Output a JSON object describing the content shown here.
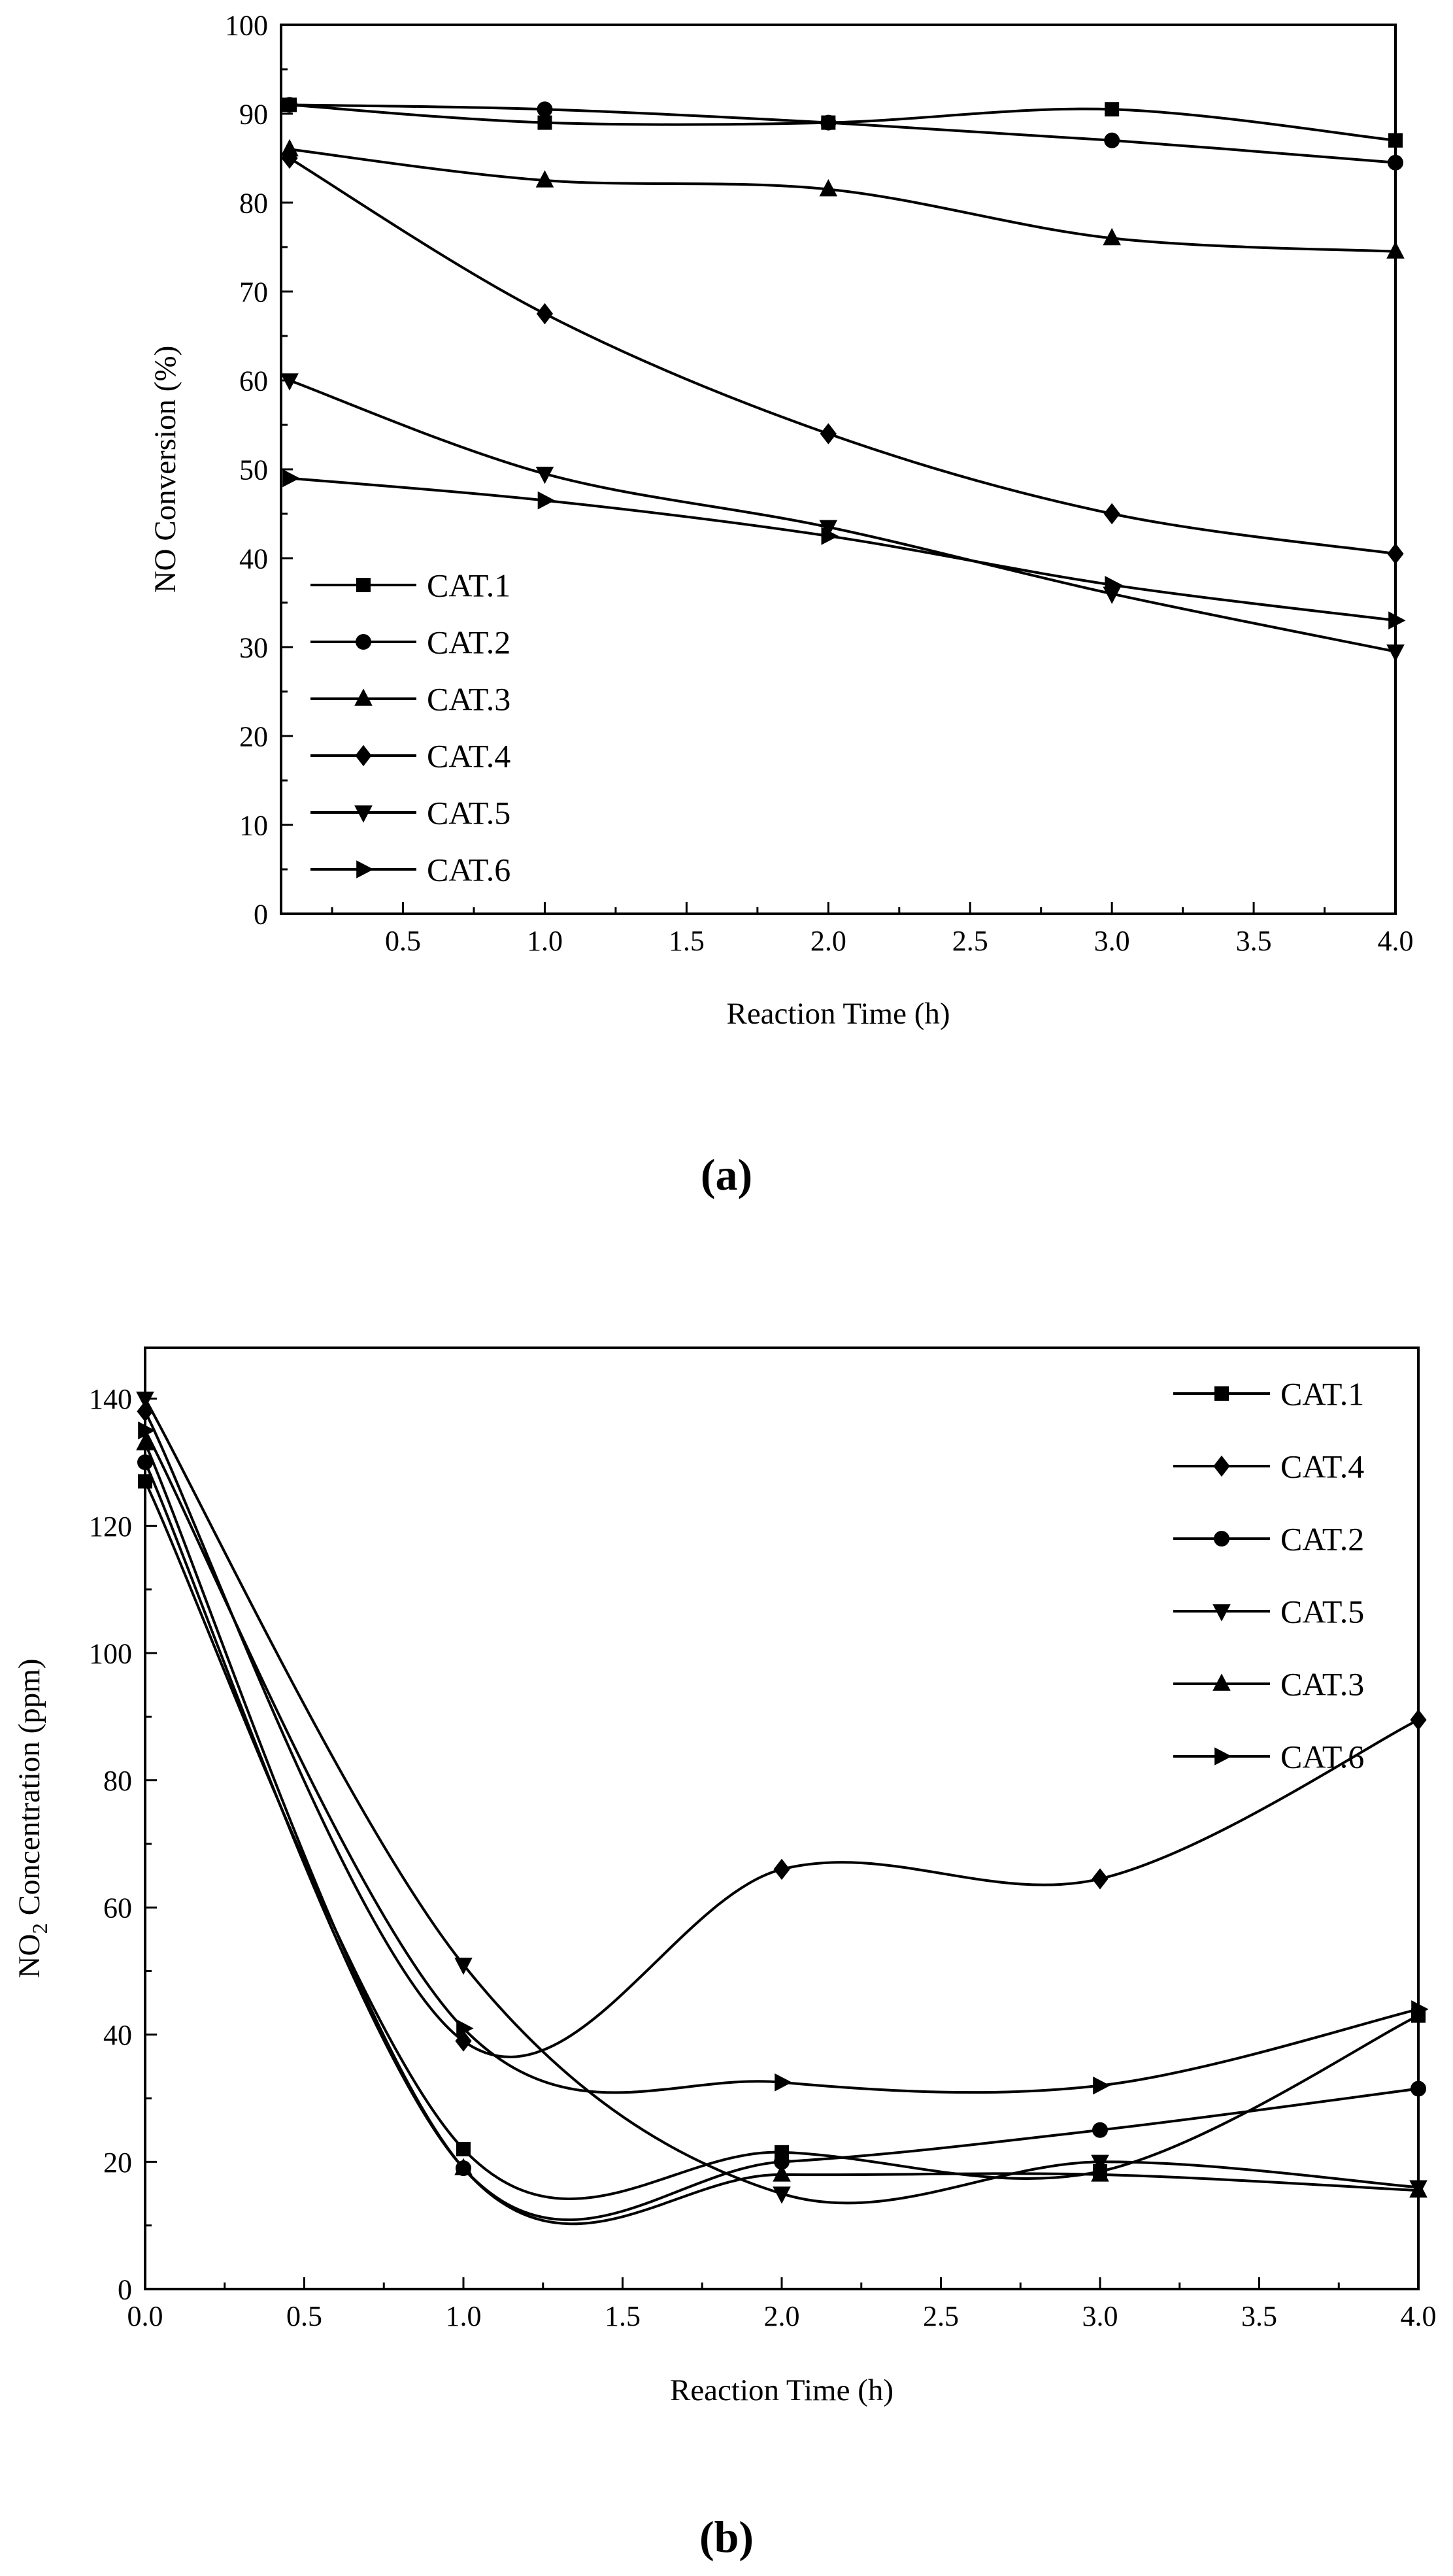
{
  "page": {
    "background": "#ffffff",
    "ink": "#000000"
  },
  "captions": {
    "a": "(a)",
    "b": "(b)"
  },
  "chart_data": [
    {
      "panel": "a",
      "type": "line",
      "title": "",
      "xlabel": "Reaction Time (h)",
      "ylabel": "NO Conversion (%)",
      "ylabel_segments": [
        {
          "t": "NO Conversion (%)",
          "sub": false
        }
      ],
      "xlim": [
        0.07,
        4.0
      ],
      "ylim": [
        0,
        100
      ],
      "x_minor_step": 0.25,
      "y_minor_step": 5,
      "xticks": [
        {
          "v": 0.5,
          "label": "0.5"
        },
        {
          "v": 1.0,
          "label": "1.0"
        },
        {
          "v": 1.5,
          "label": "1.5"
        },
        {
          "v": 2.0,
          "label": "2.0"
        },
        {
          "v": 2.5,
          "label": "2.5"
        },
        {
          "v": 3.0,
          "label": "3.0"
        },
        {
          "v": 3.5,
          "label": "3.5"
        },
        {
          "v": 4.0,
          "label": "4.0"
        }
      ],
      "yticks": [
        {
          "v": 0,
          "label": "0"
        },
        {
          "v": 10,
          "label": "10"
        },
        {
          "v": 20,
          "label": "20"
        },
        {
          "v": 30,
          "label": "30"
        },
        {
          "v": 40,
          "label": "40"
        },
        {
          "v": 50,
          "label": "50"
        },
        {
          "v": 60,
          "label": "60"
        },
        {
          "v": 70,
          "label": "70"
        },
        {
          "v": 80,
          "label": "80"
        },
        {
          "v": 90,
          "label": "90"
        },
        {
          "v": 100,
          "label": "100"
        }
      ],
      "x": [
        0.1,
        1.0,
        2.0,
        3.0,
        4.0
      ],
      "series": [
        {
          "name": "CAT.1",
          "marker": "square",
          "values": [
            91,
            89,
            89,
            90.5,
            87
          ]
        },
        {
          "name": "CAT.2",
          "marker": "circle",
          "values": [
            91,
            90.5,
            89,
            87,
            84.5
          ]
        },
        {
          "name": "CAT.3",
          "marker": "triangle-up",
          "values": [
            86,
            82.5,
            81.5,
            76,
            74.5
          ]
        },
        {
          "name": "CAT.4",
          "marker": "diamond",
          "values": [
            85,
            67.5,
            54,
            45,
            40.5
          ]
        },
        {
          "name": "CAT.5",
          "marker": "triangle-down",
          "values": [
            60,
            49.5,
            43.5,
            36,
            29.5
          ]
        },
        {
          "name": "CAT.6",
          "marker": "triangle-right",
          "values": [
            49,
            46.5,
            42.5,
            37,
            33
          ]
        }
      ],
      "legend": {
        "position": "left-middle",
        "order": [
          "CAT.1",
          "CAT.2",
          "CAT.3",
          "CAT.4",
          "CAT.5",
          "CAT.6"
        ]
      }
    },
    {
      "panel": "b",
      "type": "line",
      "title": "",
      "xlabel": "Reaction Time (h)",
      "ylabel": "NO2 Concentration (ppm)",
      "ylabel_segments": [
        {
          "t": "NO",
          "sub": false
        },
        {
          "t": "2",
          "sub": true
        },
        {
          "t": " Concentration (ppm)",
          "sub": false
        }
      ],
      "xlim": [
        0.0,
        4.0
      ],
      "ylim": [
        0,
        148
      ],
      "x_minor_step": 0.25,
      "y_minor_step": 10,
      "xticks": [
        {
          "v": 0.0,
          "label": "0.0"
        },
        {
          "v": 0.5,
          "label": "0.5"
        },
        {
          "v": 1.0,
          "label": "1.0"
        },
        {
          "v": 1.5,
          "label": "1.5"
        },
        {
          "v": 2.0,
          "label": "2.0"
        },
        {
          "v": 2.5,
          "label": "2.5"
        },
        {
          "v": 3.0,
          "label": "3.0"
        },
        {
          "v": 3.5,
          "label": "3.5"
        },
        {
          "v": 4.0,
          "label": "4.0"
        }
      ],
      "yticks": [
        {
          "v": 0,
          "label": "0"
        },
        {
          "v": 20,
          "label": "20"
        },
        {
          "v": 40,
          "label": "40"
        },
        {
          "v": 60,
          "label": "60"
        },
        {
          "v": 80,
          "label": "80"
        },
        {
          "v": 100,
          "label": "100"
        },
        {
          "v": 120,
          "label": "120"
        },
        {
          "v": 140,
          "label": "140"
        }
      ],
      "x": [
        0.0,
        1.0,
        2.0,
        3.0,
        4.0
      ],
      "series": [
        {
          "name": "CAT.1",
          "marker": "square",
          "values": [
            127,
            22,
            21.5,
            18.5,
            43
          ]
        },
        {
          "name": "CAT.4",
          "marker": "diamond",
          "values": [
            138,
            39,
            66,
            64.5,
            89.5
          ]
        },
        {
          "name": "CAT.2",
          "marker": "circle",
          "values": [
            130,
            19,
            20,
            25,
            31.5
          ]
        },
        {
          "name": "CAT.5",
          "marker": "triangle-down",
          "values": [
            140,
            51,
            15,
            20,
            16
          ]
        },
        {
          "name": "CAT.3",
          "marker": "triangle-up",
          "values": [
            133,
            19,
            18,
            18,
            15.5
          ]
        },
        {
          "name": "CAT.6",
          "marker": "triangle-right",
          "values": [
            135,
            41,
            32.5,
            32,
            44
          ]
        }
      ],
      "legend": {
        "position": "top-right",
        "order": [
          "CAT.1",
          "CAT.4",
          "CAT.2",
          "CAT.5",
          "CAT.3",
          "CAT.6"
        ]
      }
    }
  ]
}
